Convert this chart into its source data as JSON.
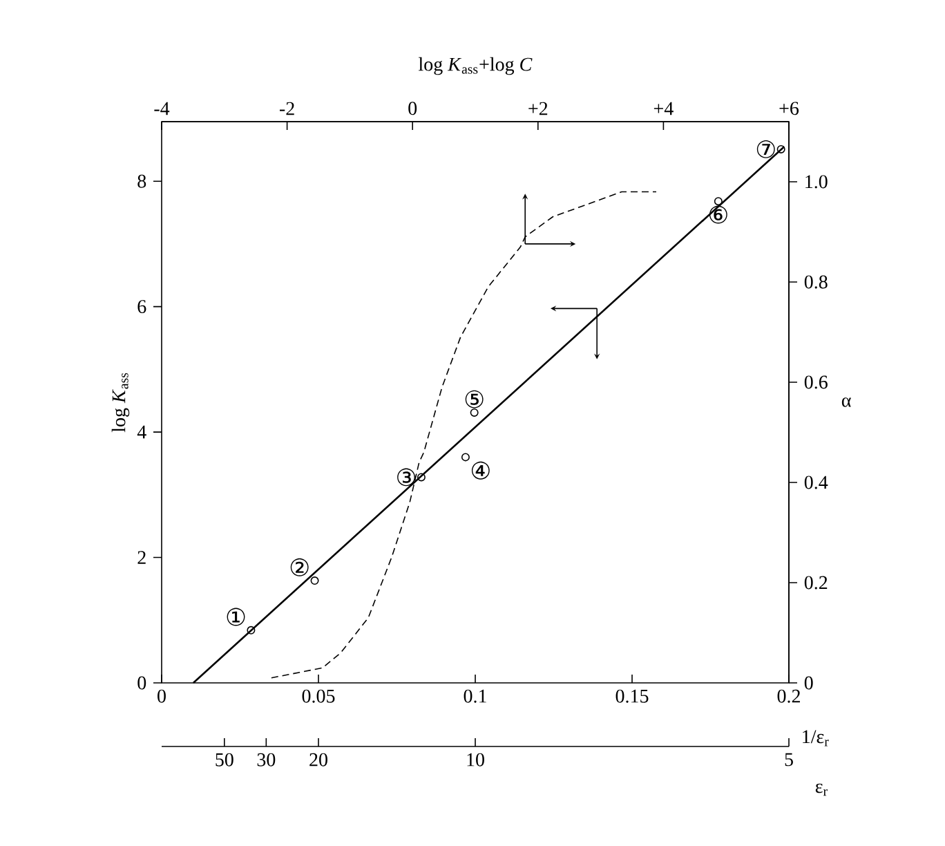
{
  "chart_data": {
    "type": "scatter",
    "xlabel": "1/ε$_{r}$",
    "ylabel": "log *K*$_{ass}$",
    "x2label": "log *K*$_{ass}$+log *C*",
    "y2label": "α",
    "xlim": [
      0,
      0.2
    ],
    "xticks": [
      0,
      0.05,
      0.1,
      0.15,
      0.2
    ],
    "ylim": [
      0,
      8.95
    ],
    "yticks": [
      0,
      2,
      4,
      6,
      8
    ],
    "x2lim": [
      -4,
      6
    ],
    "x2ticks": [
      -4,
      -2,
      0,
      {
        "value": 2,
        "label": "+2"
      },
      {
        "value": 4,
        "label": "+4"
      },
      {
        "value": 6,
        "label": "+6"
      }
    ],
    "y2lim": [
      0,
      1.12
    ],
    "y2ticks": [
      0,
      0.2,
      0.4,
      0.6,
      0.8,
      {
        "value": 1,
        "label": "1.0"
      }
    ],
    "series": [
      {
        "marker": "circle",
        "color": "#000000",
        "x": [
          0.0285,
          0.0488,
          0.0828,
          0.0969,
          0.0997,
          0.1775,
          0.1975
        ],
        "values": [
          0.84,
          1.63,
          3.28,
          3.6,
          4.31,
          7.68,
          8.51
        ]
      },
      {
        "type": "line",
        "line_style": "solid",
        "marker": "none",
        "color": "#000000",
        "x": [
          0.0101,
          0.1985
        ],
        "values": [
          0,
          8.55
        ]
      },
      {
        "type": "line",
        "line_style": "dashed",
        "marker": "none",
        "axis": "y2",
        "color": "#000000",
        "x": [
          0.035,
          0.0513,
          0.0571,
          0.0659,
          0.0733,
          0.0791,
          0.0821,
          0.0836,
          0.0894,
          0.0953,
          0.1041,
          0.1144,
          0.1159,
          0.1247,
          0.1335,
          0.1467,
          0.1577
        ],
        "values": [
          0.01,
          0.03,
          0.06,
          0.13,
          0.25,
          0.36,
          0.44,
          0.46,
          0.59,
          0.69,
          0.79,
          0.87,
          0.89,
          0.93,
          0.95,
          0.98,
          0.98
        ]
      }
    ],
    "annotations": [
      {
        "text": "①",
        "x": 0.0285,
        "y": 0.84
      },
      {
        "text": "②",
        "x": 0.0488,
        "y": 1.63
      },
      {
        "text": "③",
        "x": 0.0828,
        "y": 3.28
      },
      {
        "text": "④",
        "x": 0.0969,
        "y": 3.6
      },
      {
        "text": "⑤",
        "x": 0.0997,
        "y": 4.31
      },
      {
        "text": "⑥",
        "x": 0.1775,
        "y": 7.68
      },
      {
        "text": "⑦",
        "x": 0.1975,
        "y": 8.51
      },
      "50",
      "30",
      "20",
      "10",
      "5",
      "ε$_{r}$"
    ]
  }
}
